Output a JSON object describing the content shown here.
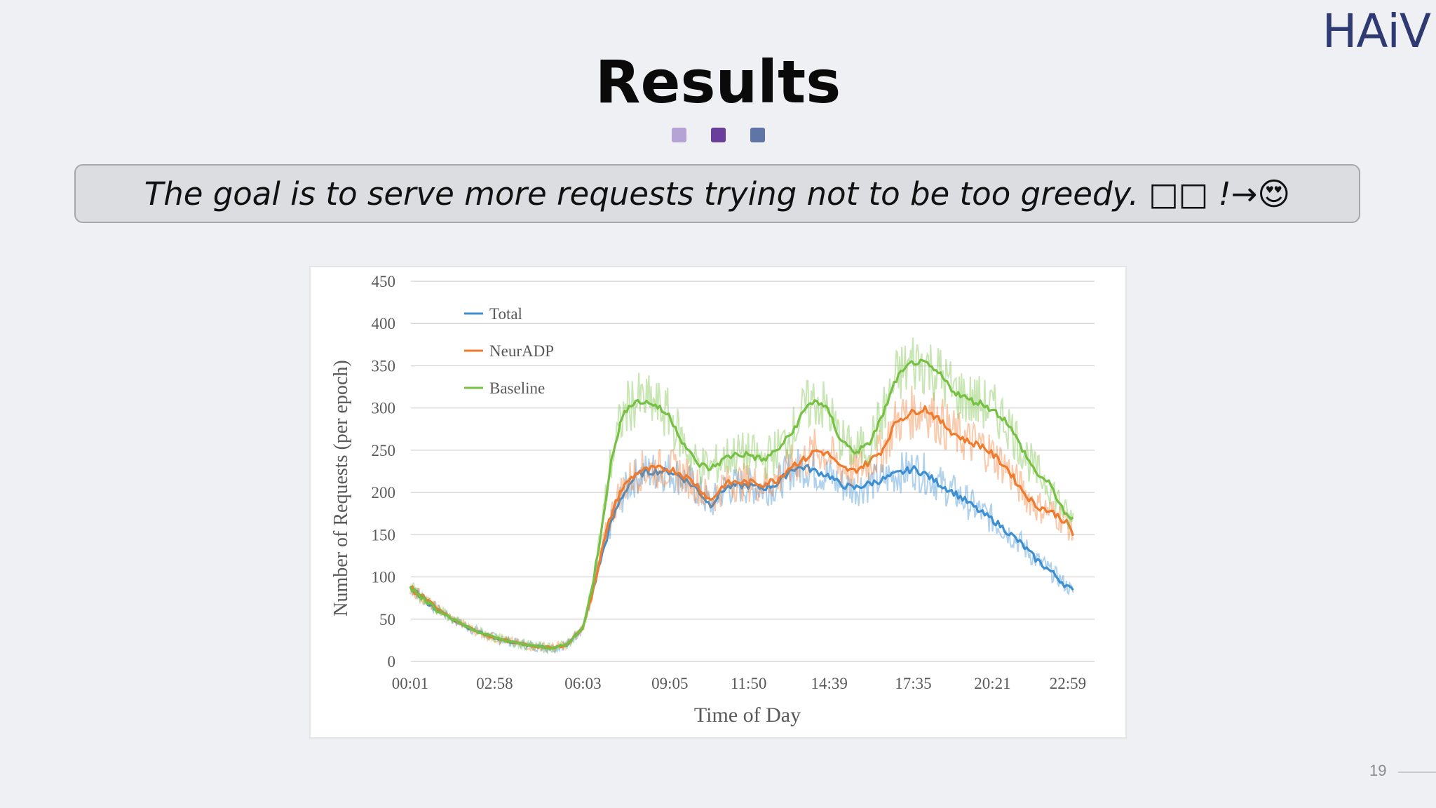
{
  "logo": "HAiV",
  "title": "Results",
  "accent_dots": [
    "#b4a3d4",
    "#6a3e9b",
    "#5f75a8"
  ],
  "banner": "The goal is to serve more requests trying not to be too greedy. □□ !→😍",
  "page_number": "19",
  "chart_data": {
    "type": "line",
    "title": "",
    "xlabel": "Time of  Day",
    "ylabel": "Number of Requests (per epoch)",
    "ylim": [
      0,
      450
    ],
    "yticks": [
      "0",
      "50",
      "100",
      "150",
      "200",
      "250",
      "300",
      "350",
      "400",
      "450"
    ],
    "xticks": [
      "00:01",
      "02:58",
      "06:03",
      "09:05",
      "11:50",
      "14:39",
      "17:35",
      "20:21",
      "22:59"
    ],
    "grid": "horizontal",
    "legend_position": "top-left",
    "x": [
      "00:01",
      "00:50",
      "01:30",
      "02:10",
      "02:58",
      "03:40",
      "04:20",
      "05:00",
      "05:30",
      "06:03",
      "06:20",
      "06:40",
      "07:00",
      "07:20",
      "07:40",
      "08:00",
      "08:30",
      "09:05",
      "09:30",
      "10:00",
      "10:30",
      "11:00",
      "11:20",
      "11:50",
      "12:20",
      "12:50",
      "13:20",
      "13:50",
      "14:10",
      "14:39",
      "15:00",
      "15:30",
      "16:00",
      "16:30",
      "17:00",
      "17:35",
      "18:00",
      "18:30",
      "19:00",
      "19:30",
      "20:00",
      "20:21",
      "20:50",
      "21:20",
      "21:50",
      "22:20",
      "22:40",
      "22:59",
      "23:10"
    ],
    "series": [
      {
        "name": "Total",
        "color": "#3d8fd1",
        "values": [
          88,
          65,
          50,
          38,
          28,
          22,
          18,
          16,
          20,
          40,
          75,
          120,
          160,
          190,
          210,
          222,
          225,
          225,
          218,
          205,
          185,
          205,
          208,
          208,
          205,
          210,
          228,
          230,
          225,
          220,
          210,
          205,
          210,
          215,
          222,
          228,
          222,
          210,
          200,
          188,
          175,
          168,
          155,
          140,
          122,
          108,
          98,
          88,
          82
        ]
      },
      {
        "name": "NeurADP",
        "color": "#f07b2f",
        "values": [
          88,
          65,
          50,
          38,
          28,
          22,
          18,
          16,
          20,
          40,
          75,
          125,
          170,
          200,
          215,
          225,
          228,
          228,
          222,
          210,
          190,
          210,
          212,
          212,
          210,
          215,
          232,
          240,
          250,
          245,
          230,
          225,
          235,
          250,
          285,
          295,
          300,
          285,
          270,
          260,
          255,
          245,
          230,
          205,
          185,
          178,
          172,
          162,
          150
        ]
      },
      {
        "name": "Baseline",
        "color": "#76c043",
        "values": [
          88,
          65,
          50,
          38,
          28,
          22,
          18,
          16,
          20,
          40,
          80,
          150,
          230,
          280,
          305,
          308,
          305,
          290,
          262,
          235,
          228,
          240,
          245,
          245,
          238,
          250,
          270,
          300,
          310,
          295,
          265,
          248,
          255,
          290,
          335,
          355,
          352,
          340,
          320,
          310,
          305,
          298,
          285,
          255,
          225,
          210,
          190,
          168,
          168
        ]
      }
    ]
  }
}
